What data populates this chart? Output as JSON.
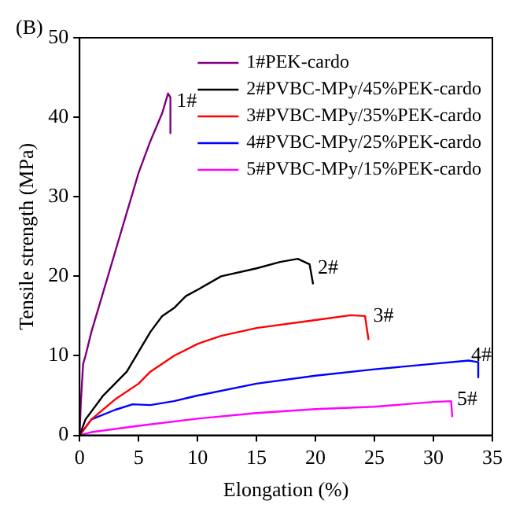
{
  "chart_data": {
    "type": "line",
    "xlabel": "Elongation (%)",
    "ylabel": "Tensile strength (MPa)",
    "xlim": [
      0,
      35
    ],
    "xticks": [
      0,
      5,
      10,
      15,
      20,
      25,
      30,
      35
    ],
    "ylim": [
      0,
      50
    ],
    "yticks": [
      0,
      10,
      20,
      30,
      40,
      50
    ],
    "grid": false,
    "legend": "top right",
    "marker": "none",
    "line_style": "solid",
    "series": [
      {
        "name": "1#PEK-cardo",
        "color": "#800080",
        "x": [
          0,
          0.1,
          0.3,
          0.5,
          1,
          2,
          3,
          4,
          5,
          6,
          7,
          7.5,
          7.7,
          7.7
        ],
        "values": [
          0,
          4,
          9,
          10,
          13,
          18,
          23,
          28,
          33,
          37,
          40.5,
          43,
          42.5,
          38
        ]
      },
      {
        "name": "2#PVBC-MPy/45%PEK-cardo",
        "color": "#000000",
        "x": [
          0,
          0.5,
          2,
          4,
          5,
          6,
          7,
          8,
          9,
          10,
          12,
          15,
          17,
          18.5,
          19.5,
          19.8
        ],
        "values": [
          0,
          2,
          5,
          8,
          10.5,
          13,
          15,
          16,
          17.5,
          18.3,
          20,
          21,
          21.8,
          22.2,
          21.5,
          19
        ]
      },
      {
        "name": "3#PVBC-MPy/35%PEK-cardo",
        "color": "#ff0000",
        "x": [
          0,
          1,
          3,
          5,
          6,
          8,
          10,
          12,
          15,
          20,
          23,
          24.2,
          24.4,
          24.5
        ],
        "values": [
          0,
          2,
          4.5,
          6.5,
          8,
          10,
          11.5,
          12.5,
          13.5,
          14.5,
          15.1,
          15,
          13,
          12
        ]
      },
      {
        "name": "4#PVBC-MPy/25%PEK-cardo",
        "color": "#0000ff",
        "x": [
          0,
          1,
          3,
          4.5,
          6,
          8,
          10,
          15,
          20,
          25,
          30,
          33,
          33.8,
          33.8
        ],
        "values": [
          0,
          2,
          3.2,
          3.9,
          3.8,
          4.3,
          5,
          6.5,
          7.5,
          8.3,
          9,
          9.4,
          9.2,
          7.3
        ]
      },
      {
        "name": "5#PVBC-MPy/15%PEK-cardo",
        "color": "#ff00ff",
        "x": [
          0,
          1,
          5,
          10,
          15,
          20,
          25,
          30,
          31.5,
          31.6
        ],
        "values": [
          0,
          0.4,
          1.2,
          2.1,
          2.8,
          3.3,
          3.6,
          4.2,
          4.3,
          2.3
        ]
      }
    ],
    "annotations": [
      "(B)",
      {
        "text": "1#",
        "x": 8.2,
        "y": 42
      },
      {
        "text": "2#",
        "x": 20.2,
        "y": 21
      },
      {
        "text": "3#",
        "x": 24.9,
        "y": 15
      },
      {
        "text": "4#",
        "x": 33.2,
        "y": 10
      },
      {
        "text": "5#",
        "x": 32,
        "y": 4.5
      }
    ]
  }
}
